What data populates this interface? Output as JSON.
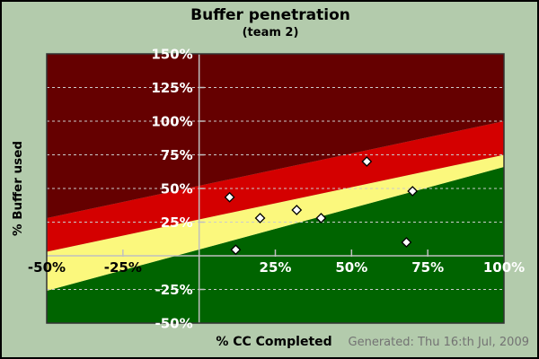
{
  "footer": {
    "generated_text": "Generated: Thu 16:th Jul, 2009"
  },
  "chart_data": {
    "type": "scatter",
    "title": "Buffer penetration",
    "subtitle": "(team 2)",
    "xlabel": "% CC Completed",
    "ylabel": "% Buffer used",
    "xlim": [
      -50,
      100
    ],
    "ylim": [
      -50,
      150
    ],
    "grid": "horizontal-dashed-only",
    "legend": "none",
    "x_ticks": [
      {
        "value": -50,
        "label": "-50%",
        "label_color": "#000000",
        "tick": false
      },
      {
        "value": -25,
        "label": "-25%",
        "label_color": "#000000",
        "tick": true
      },
      {
        "value": 25,
        "label": "25%",
        "label_color": "#ffffff",
        "tick": true
      },
      {
        "value": 50,
        "label": "50%",
        "label_color": "#ffffff",
        "tick": true
      },
      {
        "value": 75,
        "label": "75%",
        "label_color": "#ffffff",
        "tick": true
      },
      {
        "value": 100,
        "label": "100%",
        "label_color": "#ffffff",
        "tick": false
      }
    ],
    "y_ticks": [
      {
        "value": 150,
        "label": "150%",
        "tick": false
      },
      {
        "value": 125,
        "label": "125%",
        "tick": true
      },
      {
        "value": 100,
        "label": "100%",
        "tick": true
      },
      {
        "value": 75,
        "label": "75%",
        "tick": true
      },
      {
        "value": 50,
        "label": "50%",
        "tick": true
      },
      {
        "value": 25,
        "label": "25%",
        "tick": true
      },
      {
        "value": -25,
        "label": "-25%",
        "tick": true
      },
      {
        "value": -50,
        "label": "-50%",
        "tick": false
      }
    ],
    "gridline_y_values": [
      125,
      100,
      75,
      50,
      25,
      -25
    ],
    "zones": [
      {
        "name": "green",
        "color": "#006400"
      },
      {
        "name": "yellow",
        "color": "#fbf87d"
      },
      {
        "name": "red",
        "color": "#d40000"
      },
      {
        "name": "dark-red",
        "color": "#650000"
      }
    ],
    "zone_boundaries": [
      {
        "name": "green-yellow",
        "y_at_xmin": -26,
        "y_at_xmax": 66
      },
      {
        "name": "yellow-red",
        "y_at_xmin": 3,
        "y_at_xmax": 75
      },
      {
        "name": "red-darkred",
        "y_at_xmin": 28,
        "y_at_xmax": 100
      }
    ],
    "points": [
      {
        "x": 10,
        "y": 43.5
      },
      {
        "x": 12,
        "y": 4.5
      },
      {
        "x": 20,
        "y": 28
      },
      {
        "x": 32,
        "y": 34
      },
      {
        "x": 40,
        "y": 28
      },
      {
        "x": 55,
        "y": 70
      },
      {
        "x": 68,
        "y": 10
      },
      {
        "x": 70,
        "y": 48
      }
    ],
    "colors": {
      "background": "#b3cbac",
      "gridline": "#cccccc",
      "axis_line": "#c0c0c0",
      "plot_border": "#333333",
      "point_fill": "#ffffff",
      "point_stroke": "#000000",
      "y_tick_label": "#ffffff",
      "footer_text": "#737373"
    }
  }
}
